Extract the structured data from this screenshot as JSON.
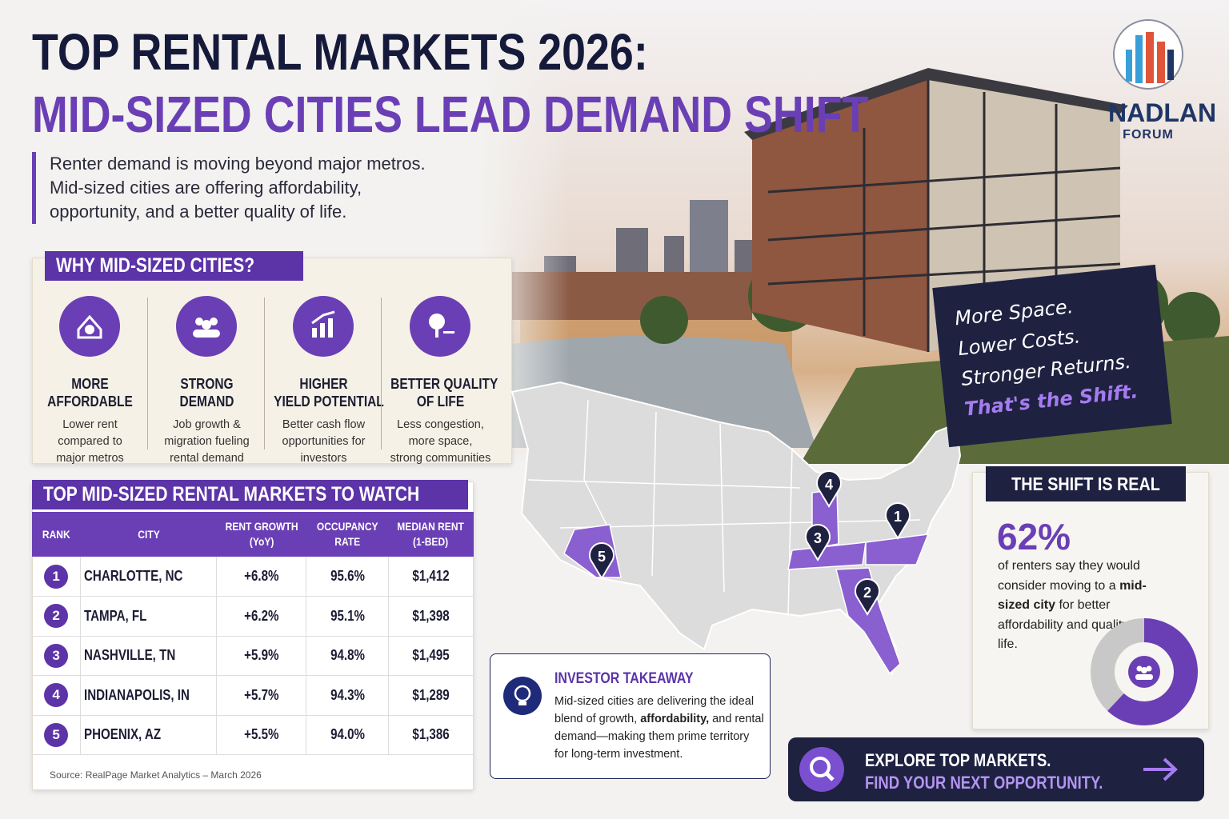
{
  "header": {
    "title": "TOP RENTAL MARKETS 2026:",
    "subtitle": "MID-SIZED CITIES LEAD DEMAND SHIFT",
    "intro": [
      "Renter demand is moving beyond major metros.",
      "Mid-sized cities are offering affordability,",
      "opportunity, and a better quality of life."
    ]
  },
  "logo": {
    "name": "NADLAN",
    "sub": "FORUM"
  },
  "why": {
    "title": "WHY MID-SIZED CITIES?",
    "items": [
      {
        "title": [
          "MORE",
          "AFFORDABLE"
        ],
        "text": [
          "Lower rent",
          "compared to",
          "major metros"
        ]
      },
      {
        "title": [
          "STRONG",
          "DEMAND"
        ],
        "text": [
          "Job growth &",
          "migration fueling",
          "rental demand"
        ]
      },
      {
        "title": [
          "HIGHER",
          "YIELD POTENTIAL"
        ],
        "text": [
          "Better cash flow",
          "opportunities for",
          "investors"
        ]
      },
      {
        "title": [
          "BETTER QUALITY",
          "OF LIFE"
        ],
        "text": [
          "Less congestion,",
          "more space,",
          "strong communities"
        ]
      }
    ]
  },
  "table": {
    "title": "TOP MID-SIZED RENTAL MARKETS TO WATCH",
    "headers": [
      [
        "RANK"
      ],
      [
        "CITY"
      ],
      [
        "RENT GROWTH",
        "(YoY)"
      ],
      [
        "OCCUPANCY",
        "RATE"
      ],
      [
        "MEDIAN RENT",
        "(1-BED)"
      ]
    ],
    "rows": [
      [
        "1",
        "CHARLOTTE, NC",
        "+6.8%",
        "95.6%",
        "$1,412"
      ],
      [
        "2",
        "TAMPA, FL",
        "+6.2%",
        "95.1%",
        "$1,398"
      ],
      [
        "3",
        "NASHVILLE, TN",
        "+5.9%",
        "94.8%",
        "$1,495"
      ],
      [
        "4",
        "INDIANAPOLIS, IN",
        "+5.7%",
        "94.3%",
        "$1,289"
      ],
      [
        "5",
        "PHOENIX, AZ",
        "+5.5%",
        "94.0%",
        "$1,386"
      ]
    ],
    "source": "Source: RealPage Market Analytics – March 2026"
  },
  "slogan": [
    "More Space.",
    "Lower Costs.",
    "Stronger Returns.",
    "That's the Shift."
  ],
  "shift": {
    "title": "THE SHIFT IS REAL",
    "stat": {
      "value": 62,
      "label": "62%"
    },
    "text_parts": [
      "of renters say they would consider moving to a ",
      "mid-sized city",
      " for better affordability and quality of life."
    ]
  },
  "takeaway": {
    "title": "INVESTOR TAKEAWAY",
    "text_parts": [
      "Mid-sized cities are delivering the ideal blend of growth, ",
      "affordability,",
      " and rental demand—making them prime territory for long-term investment."
    ]
  },
  "cta": {
    "line1": "EXPLORE TOP MARKETS.",
    "line2": "FIND YOUR NEXT OPPORTUNITY."
  }
}
